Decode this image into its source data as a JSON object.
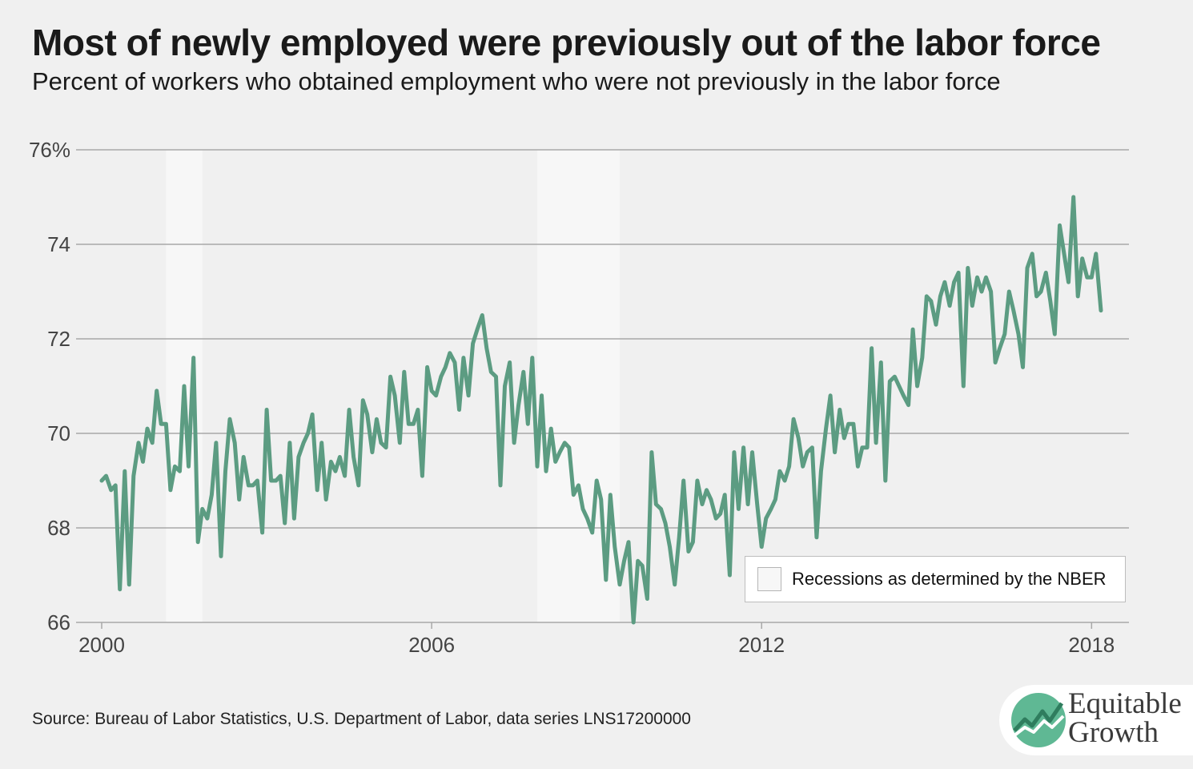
{
  "header": {
    "title": "Most of newly employed were previously out of the labor force",
    "subtitle": "Percent of workers who obtained employment who were not previously in the labor force"
  },
  "legend": {
    "label": "Recessions as determined by the NBER"
  },
  "footer": {
    "source": "Source: Bureau of Labor Statistics, U.S. Department of Labor, data series LNS17200000"
  },
  "logo": {
    "line1": "Equitable",
    "line2": "Growth"
  },
  "colors": {
    "line": "#5c9c82",
    "recession": "#f7f7f7",
    "grid": "#a8a8a8",
    "background": "#f0f0f0"
  },
  "chart_data": {
    "type": "line",
    "title": "Most of newly employed were previously out of the labor force",
    "subtitle": "Percent of workers who obtained employment who were not previously in the labor force",
    "xlabel": "",
    "ylabel": "",
    "x_ticks": [
      "2000",
      "2006",
      "2012",
      "2018"
    ],
    "y_ticks": [
      "76%",
      "74",
      "72",
      "70",
      "68",
      "66"
    ],
    "y_tick_values": [
      76,
      74,
      72,
      70,
      68,
      66
    ],
    "x_tick_values": [
      2000,
      2006,
      2012,
      2018
    ],
    "xlim": [
      2000,
      2018.33
    ],
    "ylim": [
      66,
      76
    ],
    "grid": true,
    "legend_position": "bottom-right",
    "recessions": [
      {
        "start": 2001.17,
        "end": 2001.83
      },
      {
        "start": 2007.92,
        "end": 2009.42
      }
    ],
    "series": [
      {
        "values": [
          [
            2000.0,
            69.0
          ],
          [
            2000.08,
            69.1
          ],
          [
            2000.17,
            68.8
          ],
          [
            2000.25,
            68.9
          ],
          [
            2000.33,
            66.7
          ],
          [
            2000.42,
            69.2
          ],
          [
            2000.5,
            66.8
          ],
          [
            2000.58,
            69.1
          ],
          [
            2000.67,
            69.8
          ],
          [
            2000.75,
            69.4
          ],
          [
            2000.83,
            70.1
          ],
          [
            2000.92,
            69.8
          ],
          [
            2001.0,
            70.9
          ],
          [
            2001.08,
            70.2
          ],
          [
            2001.17,
            70.2
          ],
          [
            2001.25,
            68.8
          ],
          [
            2001.33,
            69.3
          ],
          [
            2001.42,
            69.2
          ],
          [
            2001.5,
            71.0
          ],
          [
            2001.58,
            69.3
          ],
          [
            2001.67,
            71.6
          ],
          [
            2001.75,
            67.7
          ],
          [
            2001.83,
            68.4
          ],
          [
            2001.92,
            68.2
          ],
          [
            2002.0,
            68.7
          ],
          [
            2002.08,
            69.8
          ],
          [
            2002.17,
            67.4
          ],
          [
            2002.25,
            69.2
          ],
          [
            2002.33,
            70.3
          ],
          [
            2002.42,
            69.8
          ],
          [
            2002.5,
            68.6
          ],
          [
            2002.58,
            69.5
          ],
          [
            2002.67,
            68.9
          ],
          [
            2002.75,
            68.9
          ],
          [
            2002.83,
            69.0
          ],
          [
            2002.92,
            67.9
          ],
          [
            2003.0,
            70.5
          ],
          [
            2003.08,
            69.0
          ],
          [
            2003.17,
            69.0
          ],
          [
            2003.25,
            69.1
          ],
          [
            2003.33,
            68.1
          ],
          [
            2003.42,
            69.8
          ],
          [
            2003.5,
            68.2
          ],
          [
            2003.58,
            69.5
          ],
          [
            2003.67,
            69.8
          ],
          [
            2003.75,
            70.0
          ],
          [
            2003.83,
            70.4
          ],
          [
            2003.92,
            68.8
          ],
          [
            2004.0,
            69.8
          ],
          [
            2004.08,
            68.6
          ],
          [
            2004.17,
            69.4
          ],
          [
            2004.25,
            69.2
          ],
          [
            2004.33,
            69.5
          ],
          [
            2004.42,
            69.1
          ],
          [
            2004.5,
            70.5
          ],
          [
            2004.58,
            69.5
          ],
          [
            2004.67,
            68.9
          ],
          [
            2004.75,
            70.7
          ],
          [
            2004.83,
            70.4
          ],
          [
            2004.92,
            69.6
          ],
          [
            2005.0,
            70.3
          ],
          [
            2005.08,
            69.8
          ],
          [
            2005.17,
            69.7
          ],
          [
            2005.25,
            71.2
          ],
          [
            2005.33,
            70.8
          ],
          [
            2005.42,
            69.8
          ],
          [
            2005.5,
            71.3
          ],
          [
            2005.58,
            70.2
          ],
          [
            2005.67,
            70.2
          ],
          [
            2005.75,
            70.5
          ],
          [
            2005.83,
            69.1
          ],
          [
            2005.92,
            71.4
          ],
          [
            2006.0,
            70.9
          ],
          [
            2006.08,
            70.8
          ],
          [
            2006.17,
            71.2
          ],
          [
            2006.25,
            71.4
          ],
          [
            2006.33,
            71.7
          ],
          [
            2006.42,
            71.5
          ],
          [
            2006.5,
            70.5
          ],
          [
            2006.58,
            71.6
          ],
          [
            2006.67,
            70.8
          ],
          [
            2006.75,
            71.9
          ],
          [
            2006.83,
            72.2
          ],
          [
            2006.92,
            72.5
          ],
          [
            2007.0,
            71.8
          ],
          [
            2007.08,
            71.3
          ],
          [
            2007.17,
            71.2
          ],
          [
            2007.25,
            68.9
          ],
          [
            2007.33,
            71.0
          ],
          [
            2007.42,
            71.5
          ],
          [
            2007.5,
            69.8
          ],
          [
            2007.58,
            70.6
          ],
          [
            2007.67,
            71.3
          ],
          [
            2007.75,
            70.2
          ],
          [
            2007.83,
            71.6
          ],
          [
            2007.92,
            69.3
          ],
          [
            2008.0,
            70.8
          ],
          [
            2008.08,
            69.2
          ],
          [
            2008.17,
            70.1
          ],
          [
            2008.25,
            69.4
          ],
          [
            2008.33,
            69.6
          ],
          [
            2008.42,
            69.8
          ],
          [
            2008.5,
            69.7
          ],
          [
            2008.58,
            68.7
          ],
          [
            2008.67,
            68.9
          ],
          [
            2008.75,
            68.4
          ],
          [
            2008.83,
            68.2
          ],
          [
            2008.92,
            67.9
          ],
          [
            2009.0,
            69.0
          ],
          [
            2009.08,
            68.6
          ],
          [
            2009.17,
            66.9
          ],
          [
            2009.25,
            68.7
          ],
          [
            2009.33,
            67.6
          ],
          [
            2009.42,
            66.8
          ],
          [
            2009.5,
            67.3
          ],
          [
            2009.58,
            67.7
          ],
          [
            2009.67,
            66.0
          ],
          [
            2009.75,
            67.3
          ],
          [
            2009.83,
            67.2
          ],
          [
            2009.92,
            66.5
          ],
          [
            2010.0,
            69.6
          ],
          [
            2010.08,
            68.5
          ],
          [
            2010.17,
            68.4
          ],
          [
            2010.25,
            68.1
          ],
          [
            2010.33,
            67.6
          ],
          [
            2010.42,
            66.8
          ],
          [
            2010.5,
            67.8
          ],
          [
            2010.58,
            69.0
          ],
          [
            2010.67,
            67.5
          ],
          [
            2010.75,
            67.7
          ],
          [
            2010.83,
            69.0
          ],
          [
            2010.92,
            68.5
          ],
          [
            2011.0,
            68.8
          ],
          [
            2011.08,
            68.6
          ],
          [
            2011.17,
            68.2
          ],
          [
            2011.25,
            68.3
          ],
          [
            2011.33,
            68.7
          ],
          [
            2011.42,
            67.0
          ],
          [
            2011.5,
            69.6
          ],
          [
            2011.58,
            68.4
          ],
          [
            2011.67,
            69.7
          ],
          [
            2011.75,
            68.5
          ],
          [
            2011.83,
            69.6
          ],
          [
            2011.92,
            68.5
          ],
          [
            2012.0,
            67.6
          ],
          [
            2012.08,
            68.2
          ],
          [
            2012.17,
            68.4
          ],
          [
            2012.25,
            68.6
          ],
          [
            2012.33,
            69.2
          ],
          [
            2012.42,
            69.0
          ],
          [
            2012.5,
            69.3
          ],
          [
            2012.58,
            70.3
          ],
          [
            2012.67,
            69.9
          ],
          [
            2012.75,
            69.3
          ],
          [
            2012.83,
            69.6
          ],
          [
            2012.92,
            69.7
          ],
          [
            2013.0,
            67.8
          ],
          [
            2013.08,
            69.2
          ],
          [
            2013.17,
            70.1
          ],
          [
            2013.25,
            70.8
          ],
          [
            2013.33,
            69.6
          ],
          [
            2013.42,
            70.5
          ],
          [
            2013.5,
            69.9
          ],
          [
            2013.58,
            70.2
          ],
          [
            2013.67,
            70.2
          ],
          [
            2013.75,
            69.3
          ],
          [
            2013.83,
            69.7
          ],
          [
            2013.92,
            69.7
          ],
          [
            2014.0,
            71.8
          ],
          [
            2014.08,
            69.8
          ],
          [
            2014.17,
            71.5
          ],
          [
            2014.25,
            69.0
          ],
          [
            2014.33,
            71.1
          ],
          [
            2014.42,
            71.2
          ],
          [
            2014.5,
            71.0
          ],
          [
            2014.58,
            70.8
          ],
          [
            2014.67,
            70.6
          ],
          [
            2014.75,
            72.2
          ],
          [
            2014.83,
            71.0
          ],
          [
            2014.92,
            71.6
          ],
          [
            2015.0,
            72.9
          ],
          [
            2015.08,
            72.8
          ],
          [
            2015.17,
            72.3
          ],
          [
            2015.25,
            72.9
          ],
          [
            2015.33,
            73.2
          ],
          [
            2015.42,
            72.7
          ],
          [
            2015.5,
            73.2
          ],
          [
            2015.58,
            73.4
          ],
          [
            2015.67,
            71.0
          ],
          [
            2015.75,
            73.5
          ],
          [
            2015.83,
            72.7
          ],
          [
            2015.92,
            73.3
          ],
          [
            2016.0,
            73.0
          ],
          [
            2016.08,
            73.3
          ],
          [
            2016.17,
            73.0
          ],
          [
            2016.25,
            71.5
          ],
          [
            2016.33,
            71.8
          ],
          [
            2016.42,
            72.1
          ],
          [
            2016.5,
            73.0
          ],
          [
            2016.58,
            72.6
          ],
          [
            2016.67,
            72.1
          ],
          [
            2016.75,
            71.4
          ],
          [
            2016.83,
            73.5
          ],
          [
            2016.92,
            73.8
          ],
          [
            2017.0,
            72.9
          ],
          [
            2017.08,
            73.0
          ],
          [
            2017.17,
            73.4
          ],
          [
            2017.25,
            72.8
          ],
          [
            2017.33,
            72.1
          ],
          [
            2017.42,
            74.4
          ],
          [
            2017.5,
            73.8
          ],
          [
            2017.58,
            73.2
          ],
          [
            2017.67,
            75.0
          ],
          [
            2017.75,
            72.9
          ],
          [
            2017.83,
            73.7
          ],
          [
            2017.92,
            73.3
          ],
          [
            2018.0,
            73.3
          ],
          [
            2018.08,
            73.8
          ],
          [
            2018.17,
            72.6
          ]
        ]
      }
    ]
  }
}
